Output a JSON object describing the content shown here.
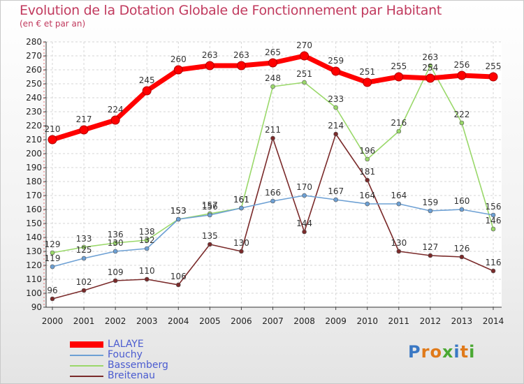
{
  "title": "Evolution de la Dotation Globale de Fonctionnement par Habitant",
  "subtitle": "(en € et par an)",
  "logo": {
    "letters": [
      "P",
      "r",
      "o",
      "x",
      "i",
      "t",
      "i"
    ],
    "colors": [
      "#3a78c4",
      "#e07a1a",
      "#e07a1a",
      "#4aa832",
      "#3a78c4",
      "#e07a1a",
      "#4aa832"
    ]
  },
  "chart_data": {
    "type": "line",
    "title": "Evolution de la Dotation Globale de Fonctionnement par Habitant",
    "subtitle": "(en € et par an)",
    "x": [
      "2000",
      "2001",
      "2002",
      "2003",
      "2004",
      "2005",
      "2006",
      "2007",
      "2008",
      "2009",
      "2010",
      "2011",
      "2012",
      "2013",
      "2014"
    ],
    "ylim": [
      90,
      280
    ],
    "yticks": [
      90,
      100,
      110,
      120,
      130,
      140,
      150,
      160,
      170,
      180,
      190,
      200,
      210,
      220,
      230,
      240,
      250,
      260,
      270,
      280
    ],
    "grid": true,
    "legend_position": "bottom-left",
    "series": [
      {
        "name": "LALAYE",
        "color": "#ff0000",
        "values": [
          210,
          217,
          224,
          245,
          260,
          263,
          263,
          265,
          270,
          259,
          251,
          255,
          254,
          256,
          255
        ],
        "labels": [
          "210",
          "217",
          "224",
          "245",
          "260",
          "263",
          "263",
          "265",
          "270",
          "259",
          "251",
          "255",
          "254",
          "256",
          "255"
        ]
      },
      {
        "name": "Fouchy",
        "color": "#6da0d4",
        "values": [
          119,
          125,
          130,
          132,
          153,
          156,
          161,
          166,
          170,
          167,
          164,
          164,
          159,
          160,
          156
        ],
        "labels": [
          "119",
          "125",
          "130",
          "132",
          "153",
          "156",
          "161",
          "166",
          "170",
          "167",
          "164",
          "164",
          "159",
          "160",
          "156"
        ]
      },
      {
        "name": "Bassemberg",
        "color": "#9ad86a",
        "values": [
          129,
          133,
          136,
          138,
          153,
          157,
          161,
          248,
          251,
          233,
          196,
          216,
          263,
          222,
          146
        ],
        "labels": [
          "129",
          "133",
          "136",
          "138",
          "153",
          "157",
          "161",
          "248",
          "251",
          "233",
          "196",
          "216",
          "263",
          "222",
          "146"
        ]
      },
      {
        "name": "Breitenau",
        "color": "#7a2a2a",
        "values": [
          96,
          102,
          109,
          110,
          106,
          135,
          130,
          211,
          144,
          214,
          181,
          130,
          127,
          126,
          116
        ],
        "labels": [
          "96",
          "102",
          "109",
          "110",
          "106",
          "135",
          "130",
          "211",
          "144",
          "214",
          "181",
          "130",
          "127",
          "126",
          "116"
        ]
      }
    ]
  }
}
